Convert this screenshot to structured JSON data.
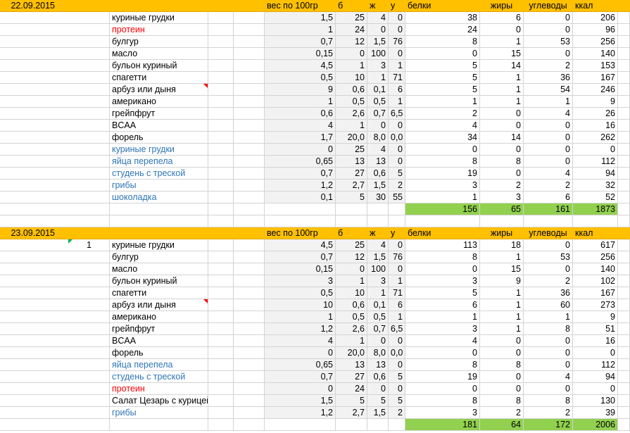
{
  "blocks": [
    {
      "date": "22.09.2015",
      "headers": {
        "weight": "вес по 100гр",
        "b": "б",
        "zh": "ж",
        "u": "у",
        "protein": "белки",
        "fat": "жиры",
        "carbs": "углеводы",
        "kcal": "ккал"
      },
      "rows": [
        {
          "name": "куриные грудки",
          "color": "black",
          "w": "1,5",
          "b": "25",
          "zh": "4",
          "u": "0",
          "p": "38",
          "f": "6",
          "c": "0",
          "k": "206"
        },
        {
          "name": "протеин",
          "color": "red",
          "w": "1",
          "b": "24",
          "zh": "0",
          "u": "0",
          "p": "24",
          "f": "0",
          "c": "0",
          "k": "96"
        },
        {
          "name": "булгур",
          "color": "black",
          "w": "0,7",
          "b": "12",
          "zh": "1,5",
          "u": "76",
          "p": "8",
          "f": "1",
          "c": "53",
          "k": "256"
        },
        {
          "name": "масло",
          "color": "black",
          "w": "0,15",
          "b": "0",
          "zh": "100",
          "u": "0",
          "p": "0",
          "f": "15",
          "c": "0",
          "k": "140"
        },
        {
          "name": "бульон куриный",
          "color": "black",
          "w": "4,5",
          "b": "1",
          "zh": "3",
          "u": "1",
          "p": "5",
          "f": "14",
          "c": "2",
          "k": "153"
        },
        {
          "name": "спагетти",
          "color": "black",
          "w": "0,5",
          "b": "10",
          "zh": "1",
          "u": "71",
          "p": "5",
          "f": "1",
          "c": "36",
          "k": "167"
        },
        {
          "name": "арбуз или дыня",
          "color": "black",
          "w": "9",
          "b": "0,6",
          "zh": "0,1",
          "u": "6",
          "p": "5",
          "f": "1",
          "c": "54",
          "k": "246",
          "comment": true
        },
        {
          "name": "американо",
          "color": "black",
          "w": "1",
          "b": "0,5",
          "zh": "0,5",
          "u": "1",
          "p": "1",
          "f": "1",
          "c": "1",
          "k": "9"
        },
        {
          "name": "грейпфрут",
          "color": "black",
          "w": "0,6",
          "b": "2,6",
          "zh": "0,7",
          "u": "6,5",
          "p": "2",
          "f": "0",
          "c": "4",
          "k": "26"
        },
        {
          "name": "BCAA",
          "color": "black",
          "w": "4",
          "b": "1",
          "zh": "0",
          "u": "0",
          "p": "4",
          "f": "0",
          "c": "0",
          "k": "16"
        },
        {
          "name": "форель",
          "color": "black",
          "w": "1,7",
          "b": "20,0",
          "zh": "8,0",
          "u": "0,0",
          "p": "34",
          "f": "14",
          "c": "0",
          "k": "262"
        },
        {
          "name": "куриные грудки",
          "color": "blue",
          "w": "0",
          "b": "25",
          "zh": "4",
          "u": "0",
          "p": "0",
          "f": "0",
          "c": "0",
          "k": "0"
        },
        {
          "name": "яйца перепела",
          "color": "blue",
          "w": "0,65",
          "b": "13",
          "zh": "13",
          "u": "0",
          "p": "8",
          "f": "8",
          "c": "0",
          "k": "112"
        },
        {
          "name": "студень с треской",
          "color": "blue",
          "w": "0,7",
          "b": "27",
          "zh": "0,6",
          "u": "5",
          "p": "19",
          "f": "0",
          "c": "4",
          "k": "94"
        },
        {
          "name": "грибы",
          "color": "blue",
          "w": "1,2",
          "b": "2,7",
          "zh": "1,5",
          "u": "2",
          "p": "3",
          "f": "2",
          "c": "2",
          "k": "32"
        },
        {
          "name": "шоколадка",
          "color": "blue",
          "w": "0,1",
          "b": "5",
          "zh": "30",
          "u": "55",
          "p": "1",
          "f": "3",
          "c": "6",
          "k": "52"
        }
      ],
      "totals": {
        "p": "156",
        "f": "65",
        "c": "161",
        "k": "1873"
      }
    },
    {
      "date": "23.09.2015",
      "headers": {
        "weight": "вес по 100гр",
        "b": "б",
        "zh": "ж",
        "u": "у",
        "protein": "белки",
        "fat": "жиры",
        "carbs": "углеводы",
        "kcal": "ккал"
      },
      "rows": [
        {
          "name": "куриные грудки",
          "color": "black",
          "index": "1",
          "w": "4,5",
          "b": "25",
          "zh": "4",
          "u": "0",
          "p": "113",
          "f": "18",
          "c": "0",
          "k": "617"
        },
        {
          "name": "булгур",
          "color": "black",
          "w": "0,7",
          "b": "12",
          "zh": "1,5",
          "u": "76",
          "p": "8",
          "f": "1",
          "c": "53",
          "k": "256"
        },
        {
          "name": "масло",
          "color": "black",
          "w": "0,15",
          "b": "0",
          "zh": "100",
          "u": "0",
          "p": "0",
          "f": "15",
          "c": "0",
          "k": "140"
        },
        {
          "name": "бульон куриный",
          "color": "black",
          "w": "3",
          "b": "1",
          "zh": "3",
          "u": "1",
          "p": "3",
          "f": "9",
          "c": "2",
          "k": "102"
        },
        {
          "name": "спагетти",
          "color": "black",
          "w": "0,5",
          "b": "10",
          "zh": "1",
          "u": "71",
          "p": "5",
          "f": "1",
          "c": "36",
          "k": "167"
        },
        {
          "name": "арбуз или дыня",
          "color": "black",
          "w": "10",
          "b": "0,6",
          "zh": "0,1",
          "u": "6",
          "p": "6",
          "f": "1",
          "c": "60",
          "k": "273",
          "comment": true
        },
        {
          "name": "американо",
          "color": "black",
          "w": "1",
          "b": "0,5",
          "zh": "0,5",
          "u": "1",
          "p": "1",
          "f": "1",
          "c": "1",
          "k": "9"
        },
        {
          "name": "грейпфрут",
          "color": "black",
          "w": "1,2",
          "b": "2,6",
          "zh": "0,7",
          "u": "6,5",
          "p": "3",
          "f": "1",
          "c": "8",
          "k": "51"
        },
        {
          "name": "BCAA",
          "color": "black",
          "w": "4",
          "b": "1",
          "zh": "0",
          "u": "0",
          "p": "4",
          "f": "0",
          "c": "0",
          "k": "16"
        },
        {
          "name": "форель",
          "color": "black",
          "w": "0",
          "b": "20,0",
          "zh": "8,0",
          "u": "0,0",
          "p": "0",
          "f": "0",
          "c": "0",
          "k": "0"
        },
        {
          "name": "яйца перепела",
          "color": "blue",
          "w": "0,65",
          "b": "13",
          "zh": "13",
          "u": "0",
          "p": "8",
          "f": "8",
          "c": "0",
          "k": "112"
        },
        {
          "name": "студень с треской",
          "color": "blue",
          "w": "0,7",
          "b": "27",
          "zh": "0,6",
          "u": "5",
          "p": "19",
          "f": "0",
          "c": "4",
          "k": "94"
        },
        {
          "name": "протеин",
          "color": "red",
          "w": "0",
          "b": "24",
          "zh": "0",
          "u": "0",
          "p": "0",
          "f": "0",
          "c": "0",
          "k": "0"
        },
        {
          "name": "Салат Цезарь с курицей",
          "color": "black",
          "w": "1,5",
          "b": "5",
          "zh": "5",
          "u": "5",
          "p": "8",
          "f": "8",
          "c": "8",
          "k": "130"
        },
        {
          "name": "грибы",
          "color": "blue",
          "w": "1,2",
          "b": "2,7",
          "zh": "1,5",
          "u": "2",
          "p": "3",
          "f": "2",
          "c": "2",
          "k": "39"
        }
      ],
      "totals": {
        "p": "181",
        "f": "64",
        "c": "172",
        "k": "2006"
      }
    }
  ]
}
